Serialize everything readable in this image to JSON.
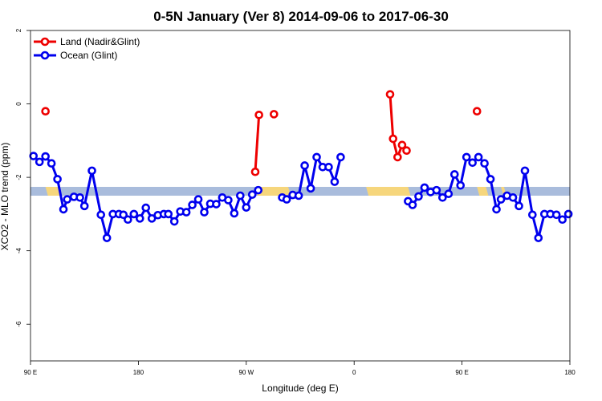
{
  "chart_data": {
    "type": "line",
    "title": "0-5N January (Ver 8)   2014-09-06 to 2017-06-30",
    "xlabel": "Longitude (deg E)",
    "ylabel": "XCO2 - MLO trend (ppm)",
    "xlim": [
      90,
      450
    ],
    "ylim": [
      -7,
      2
    ],
    "x_ticks": [
      {
        "value": 90,
        "label": "90 E"
      },
      {
        "value": 162,
        "label": "180"
      },
      {
        "value": 234,
        "label": "90 W"
      },
      {
        "value": 306,
        "label": "0"
      },
      {
        "value": 378,
        "label": "90 E"
      },
      {
        "value": 450,
        "label": "180"
      }
    ],
    "y_ticks": [
      {
        "value": 2,
        "label": "2"
      },
      {
        "value": 0,
        "label": "0"
      },
      {
        "value": -2,
        "label": "-2"
      },
      {
        "value": -4,
        "label": "-4"
      },
      {
        "value": -6,
        "label": "-6"
      }
    ],
    "legend_position": "top-left",
    "series": [
      {
        "name": "Land (Nadir&Glint)",
        "color": "#ee0000",
        "segments": [
          [
            [
              100,
              -0.2
            ]
          ],
          [
            [
              240,
              -1.85
            ],
            [
              242.5,
              -0.3
            ]
          ],
          [
            [
              252.5,
              -0.28
            ]
          ],
          [
            [
              330,
              0.26
            ],
            [
              332,
              -0.95
            ],
            [
              335,
              -1.45
            ],
            [
              338,
              -1.12
            ],
            [
              341,
              -1.27
            ]
          ],
          [
            [
              388,
              -0.2
            ]
          ]
        ]
      },
      {
        "name": "Ocean (Glint)",
        "color": "#0000ee",
        "segments": [
          [
            [
              92,
              -1.42
            ],
            [
              96,
              -1.58
            ],
            [
              100,
              -1.43
            ],
            [
              104,
              -1.62
            ],
            [
              108,
              -2.05
            ],
            [
              112,
              -2.87
            ],
            [
              114.5,
              -2.6
            ],
            [
              119,
              -2.53
            ],
            [
              123,
              -2.55
            ],
            [
              126,
              -2.78
            ],
            [
              131,
              -1.82
            ],
            [
              137,
              -3.02
            ],
            [
              141,
              -3.65
            ],
            [
              145,
              -3.0
            ],
            [
              149,
              -3.0
            ],
            [
              152,
              -3.02
            ],
            [
              155,
              -3.15
            ],
            [
              159,
              -3.0
            ],
            [
              163,
              -3.12
            ],
            [
              167,
              -2.83
            ],
            [
              171,
              -3.12
            ],
            [
              175,
              -3.03
            ],
            [
              179,
              -3.0
            ],
            [
              182,
              -3.0
            ],
            [
              186,
              -3.2
            ],
            [
              190,
              -2.93
            ],
            [
              194,
              -2.95
            ],
            [
              198,
              -2.75
            ],
            [
              202,
              -2.6
            ],
            [
              206,
              -2.95
            ],
            [
              210,
              -2.72
            ],
            [
              214,
              -2.73
            ],
            [
              218,
              -2.55
            ],
            [
              222,
              -2.62
            ],
            [
              226,
              -2.98
            ],
            [
              230,
              -2.5
            ],
            [
              234,
              -2.82
            ],
            [
              238,
              -2.47
            ],
            [
              242,
              -2.35
            ]
          ],
          [
            [
              258,
              -2.55
            ],
            [
              261,
              -2.6
            ],
            [
              265,
              -2.48
            ],
            [
              269,
              -2.5
            ],
            [
              273,
              -1.68
            ],
            [
              277,
              -2.3
            ],
            [
              281,
              -1.45
            ],
            [
              285,
              -1.72
            ],
            [
              289,
              -1.72
            ],
            [
              293,
              -2.12
            ],
            [
              297,
              -1.45
            ]
          ],
          [
            [
              342,
              -2.65
            ],
            [
              345,
              -2.75
            ],
            [
              349,
              -2.52
            ],
            [
              353,
              -2.28
            ],
            [
              357,
              -2.4
            ],
            [
              361,
              -2.35
            ],
            [
              365,
              -2.55
            ],
            [
              369,
              -2.45
            ],
            [
              373,
              -1.92
            ],
            [
              377,
              -2.22
            ],
            [
              381,
              -1.45
            ],
            [
              385,
              -1.6
            ],
            [
              389,
              -1.45
            ],
            [
              393,
              -1.62
            ],
            [
              397,
              -2.05
            ],
            [
              401,
              -2.87
            ],
            [
              404,
              -2.6
            ],
            [
              408,
              -2.5
            ],
            [
              412,
              -2.55
            ],
            [
              416,
              -2.78
            ],
            [
              420,
              -1.82
            ],
            [
              425,
              -3.02
            ],
            [
              429,
              -3.65
            ],
            [
              433,
              -3.0
            ],
            [
              437,
              -3.0
            ],
            [
              441,
              -3.02
            ],
            [
              445,
              -3.15
            ],
            [
              449,
              -3.0
            ]
          ]
        ]
      }
    ],
    "reference_band": {
      "y": -2.38,
      "ocean_color": "#a9bcdc",
      "land_color": "#f6d67c",
      "land_ranges": [
        [
          100,
          108
        ],
        [
          240,
          262
        ],
        [
          314,
          342
        ],
        [
          388,
          394
        ],
        [
          404,
          406
        ]
      ]
    }
  }
}
